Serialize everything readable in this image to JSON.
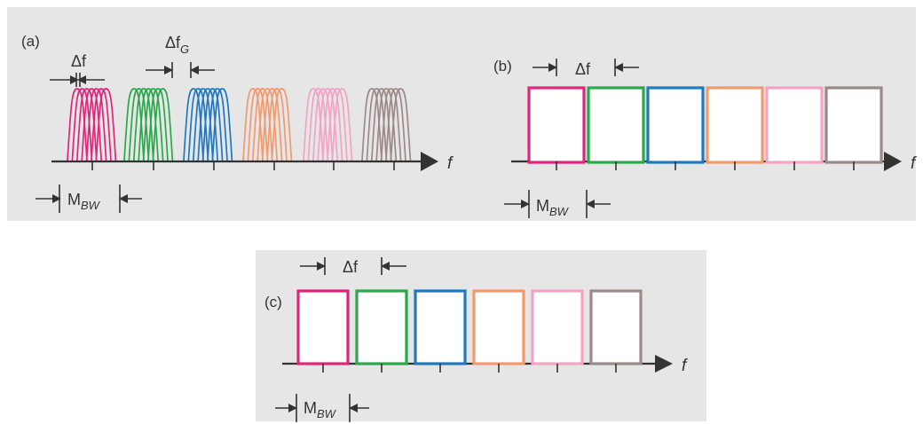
{
  "panels": {
    "a": {
      "label": "(a)",
      "delta_f": "Δf",
      "delta_fg_main": "Δf",
      "delta_fg_sub": "G",
      "mbw_main": "M",
      "mbw_sub": "BW",
      "axis_label": "f"
    },
    "b": {
      "label": "(b)",
      "delta_f": "Δf",
      "mbw_main": "M",
      "mbw_sub": "BW",
      "axis_label": "f"
    },
    "c": {
      "label": "(c)",
      "delta_f": "Δf",
      "mbw_main": "M",
      "mbw_sub": "BW",
      "axis_label": "f"
    }
  },
  "channel_colors": [
    "#e0267a",
    "#2aa84a",
    "#1f78c1",
    "#f29a6e",
    "#f3a3c4",
    "#9b8a87"
  ]
}
